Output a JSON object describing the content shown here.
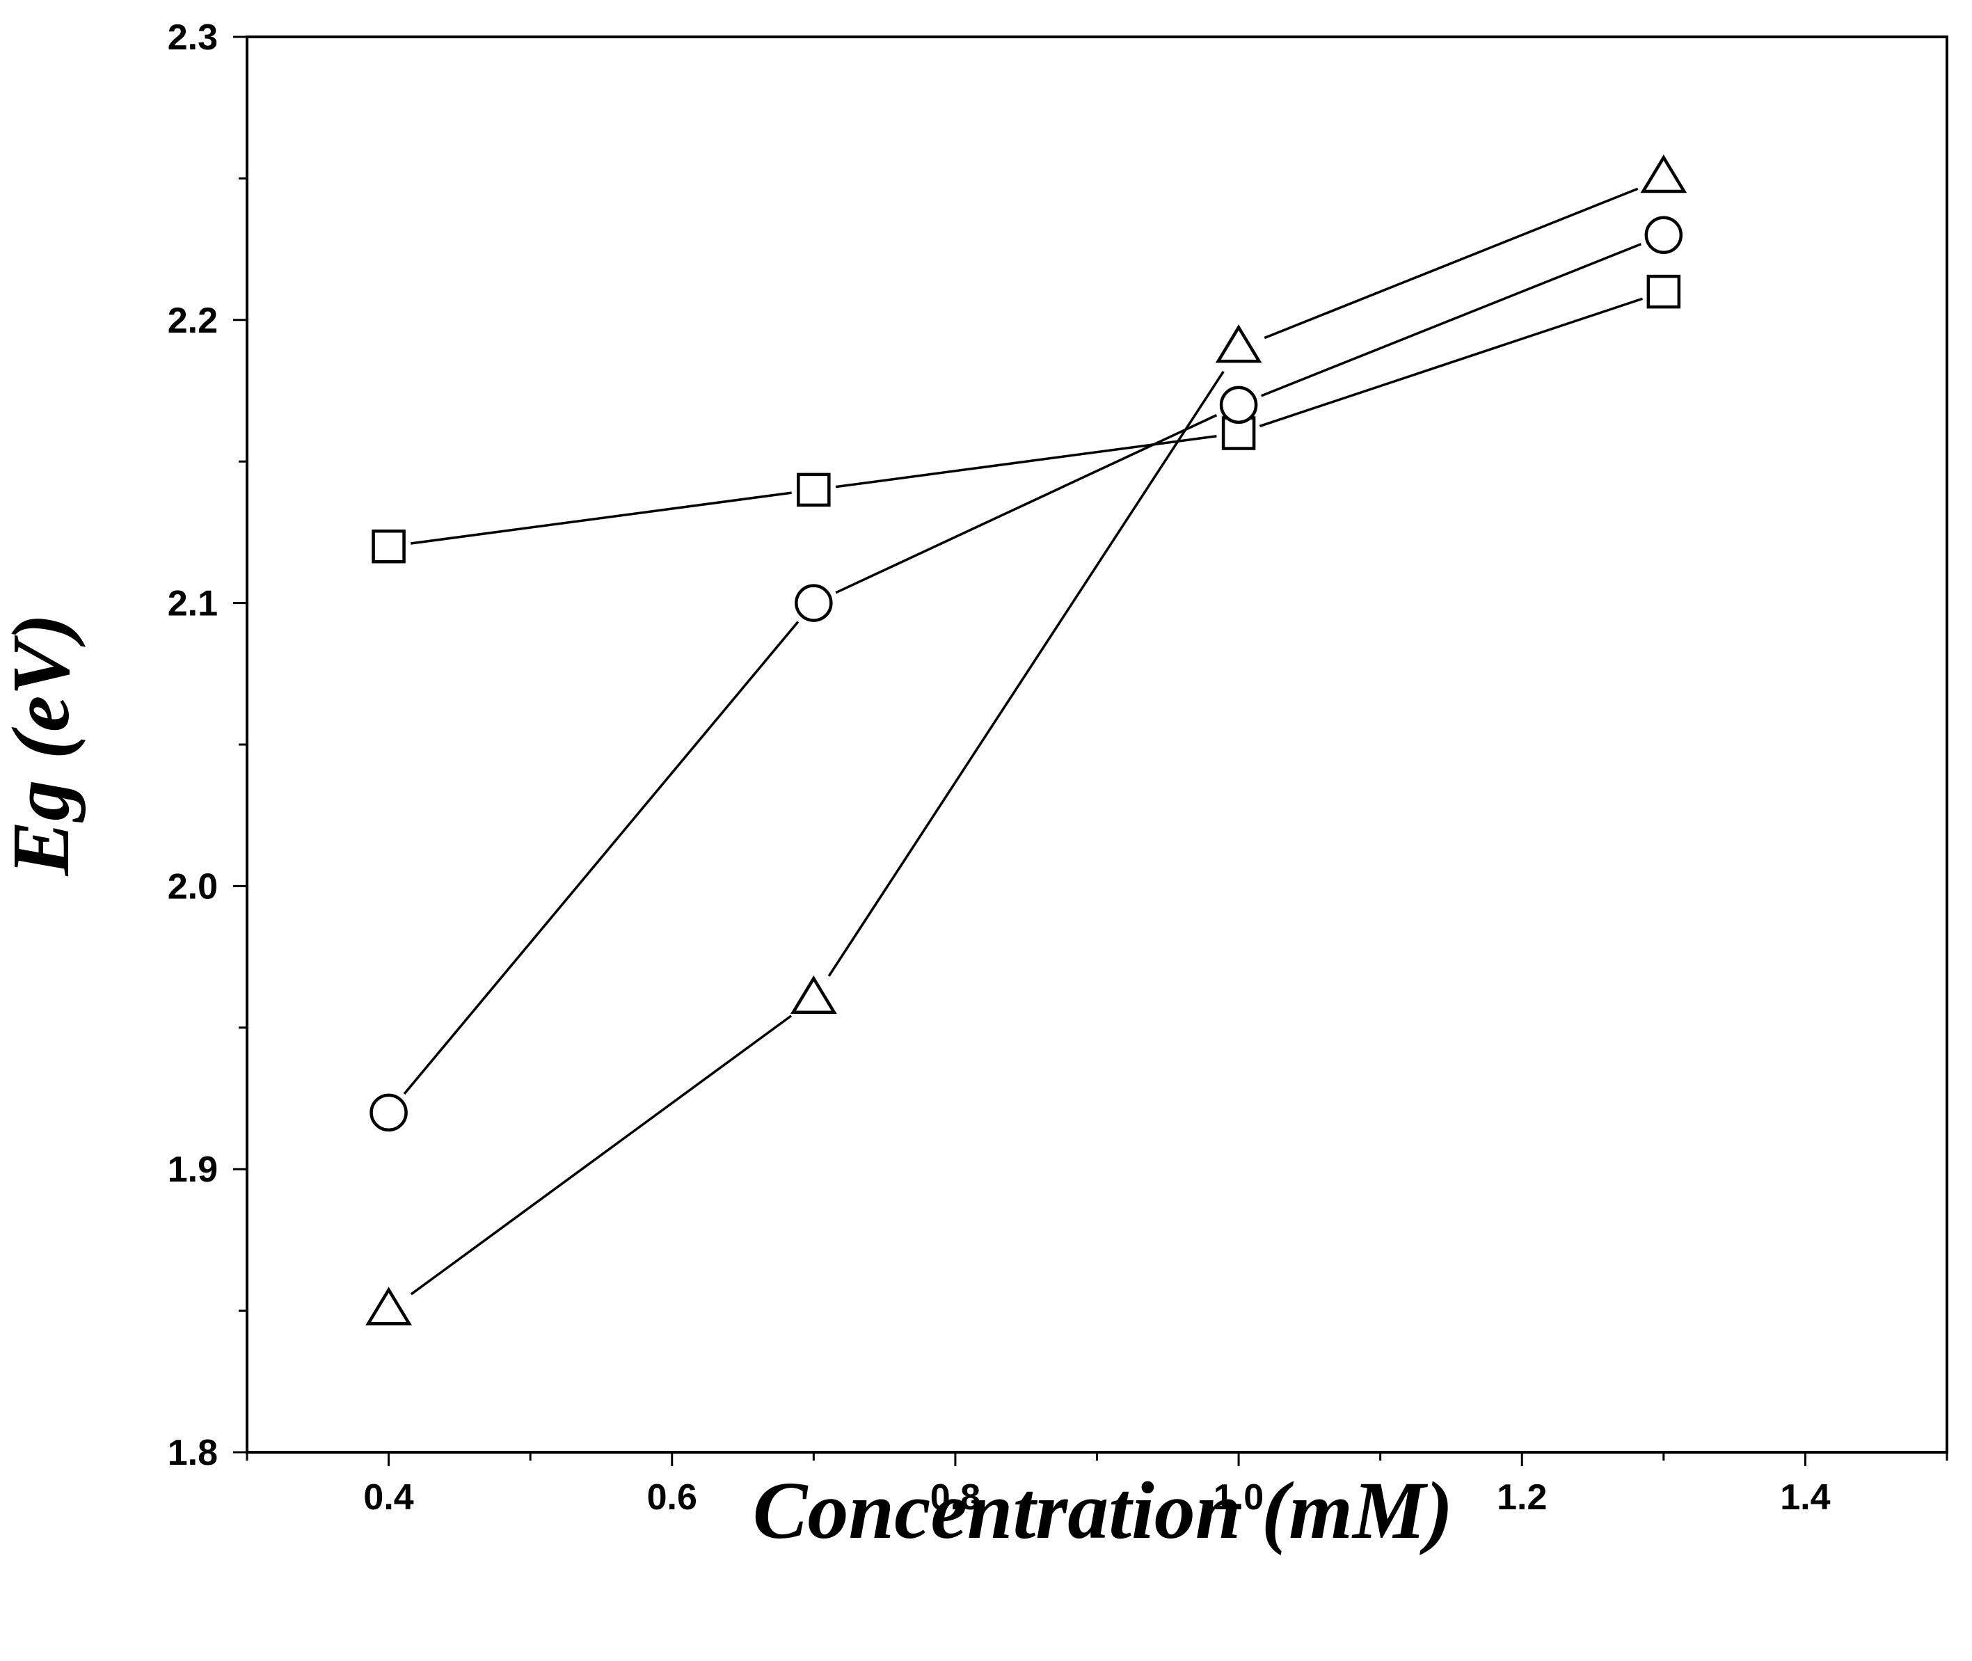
{
  "chart_data": {
    "type": "line",
    "title": "",
    "xlabel": "Concentration (mM)",
    "ylabel": "Eg (eV)",
    "xlim": [
      0.3,
      1.5
    ],
    "ylim": [
      1.8,
      2.3
    ],
    "grid": false,
    "legend": null,
    "x": [
      0.4,
      0.7,
      1.0,
      1.3
    ],
    "xticks": [
      0.4,
      0.6,
      0.8,
      1.0,
      1.2,
      1.4
    ],
    "xtick_labels": [
      "0.4",
      "0.6",
      "0.8",
      "1.0",
      "1.2",
      "1.4"
    ],
    "yticks": [
      1.8,
      1.9,
      2.0,
      2.1,
      2.2,
      2.3
    ],
    "ytick_labels": [
      "1.8",
      "1.9",
      "2.0",
      "2.1",
      "2.2",
      "2.3"
    ],
    "series": [
      {
        "name": "square",
        "marker": "square",
        "values": [
          2.12,
          2.14,
          2.16,
          2.21
        ]
      },
      {
        "name": "circle",
        "marker": "circle",
        "values": [
          1.92,
          2.1,
          2.17,
          2.23
        ]
      },
      {
        "name": "triangle",
        "marker": "triangle",
        "values": [
          1.85,
          1.96,
          2.19,
          2.25
        ]
      }
    ],
    "colors": {
      "line": "#000000",
      "marker_fill": "#ffffff",
      "marker_stroke": "#000000"
    }
  }
}
